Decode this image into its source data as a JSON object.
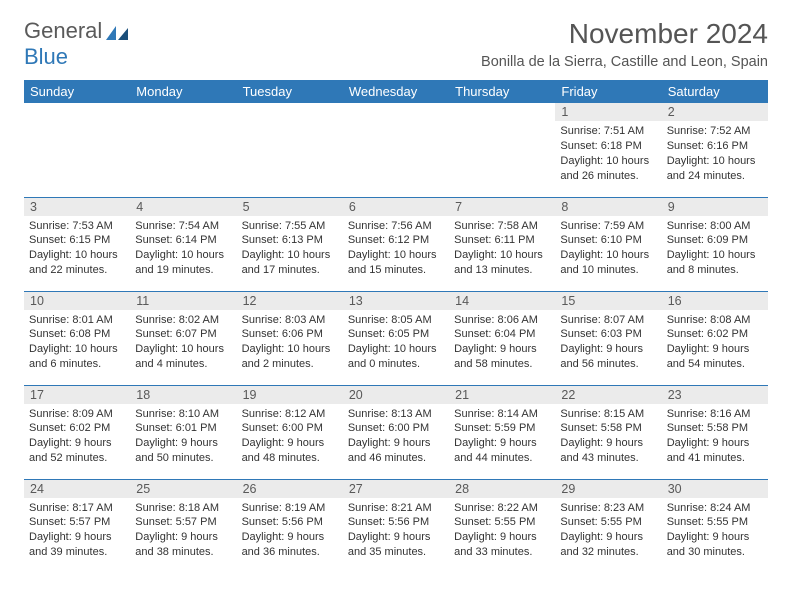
{
  "logo": {
    "text1": "General",
    "text2": "Blue"
  },
  "header": {
    "title": "November 2024",
    "subtitle": "Bonilla de la Sierra, Castille and Leon, Spain"
  },
  "colors": {
    "brand": "#2f78b7",
    "header_bg": "#2f78b7",
    "header_fg": "#ffffff",
    "daynum_bg": "#ebebeb",
    "daynum_fg": "#595959",
    "text": "#333333",
    "title_fg": "#555555"
  },
  "calendar": {
    "day_labels": [
      "Sunday",
      "Monday",
      "Tuesday",
      "Wednesday",
      "Thursday",
      "Friday",
      "Saturday"
    ],
    "weeks": [
      [
        null,
        null,
        null,
        null,
        null,
        {
          "n": "1",
          "sunrise": "7:51 AM",
          "sunset": "6:18 PM",
          "dl1": "Daylight: 10 hours",
          "dl2": "and 26 minutes."
        },
        {
          "n": "2",
          "sunrise": "7:52 AM",
          "sunset": "6:16 PM",
          "dl1": "Daylight: 10 hours",
          "dl2": "and 24 minutes."
        }
      ],
      [
        {
          "n": "3",
          "sunrise": "7:53 AM",
          "sunset": "6:15 PM",
          "dl1": "Daylight: 10 hours",
          "dl2": "and 22 minutes."
        },
        {
          "n": "4",
          "sunrise": "7:54 AM",
          "sunset": "6:14 PM",
          "dl1": "Daylight: 10 hours",
          "dl2": "and 19 minutes."
        },
        {
          "n": "5",
          "sunrise": "7:55 AM",
          "sunset": "6:13 PM",
          "dl1": "Daylight: 10 hours",
          "dl2": "and 17 minutes."
        },
        {
          "n": "6",
          "sunrise": "7:56 AM",
          "sunset": "6:12 PM",
          "dl1": "Daylight: 10 hours",
          "dl2": "and 15 minutes."
        },
        {
          "n": "7",
          "sunrise": "7:58 AM",
          "sunset": "6:11 PM",
          "dl1": "Daylight: 10 hours",
          "dl2": "and 13 minutes."
        },
        {
          "n": "8",
          "sunrise": "7:59 AM",
          "sunset": "6:10 PM",
          "dl1": "Daylight: 10 hours",
          "dl2": "and 10 minutes."
        },
        {
          "n": "9",
          "sunrise": "8:00 AM",
          "sunset": "6:09 PM",
          "dl1": "Daylight: 10 hours",
          "dl2": "and 8 minutes."
        }
      ],
      [
        {
          "n": "10",
          "sunrise": "8:01 AM",
          "sunset": "6:08 PM",
          "dl1": "Daylight: 10 hours",
          "dl2": "and 6 minutes."
        },
        {
          "n": "11",
          "sunrise": "8:02 AM",
          "sunset": "6:07 PM",
          "dl1": "Daylight: 10 hours",
          "dl2": "and 4 minutes."
        },
        {
          "n": "12",
          "sunrise": "8:03 AM",
          "sunset": "6:06 PM",
          "dl1": "Daylight: 10 hours",
          "dl2": "and 2 minutes."
        },
        {
          "n": "13",
          "sunrise": "8:05 AM",
          "sunset": "6:05 PM",
          "dl1": "Daylight: 10 hours",
          "dl2": "and 0 minutes."
        },
        {
          "n": "14",
          "sunrise": "8:06 AM",
          "sunset": "6:04 PM",
          "dl1": "Daylight: 9 hours",
          "dl2": "and 58 minutes."
        },
        {
          "n": "15",
          "sunrise": "8:07 AM",
          "sunset": "6:03 PM",
          "dl1": "Daylight: 9 hours",
          "dl2": "and 56 minutes."
        },
        {
          "n": "16",
          "sunrise": "8:08 AM",
          "sunset": "6:02 PM",
          "dl1": "Daylight: 9 hours",
          "dl2": "and 54 minutes."
        }
      ],
      [
        {
          "n": "17",
          "sunrise": "8:09 AM",
          "sunset": "6:02 PM",
          "dl1": "Daylight: 9 hours",
          "dl2": "and 52 minutes."
        },
        {
          "n": "18",
          "sunrise": "8:10 AM",
          "sunset": "6:01 PM",
          "dl1": "Daylight: 9 hours",
          "dl2": "and 50 minutes."
        },
        {
          "n": "19",
          "sunrise": "8:12 AM",
          "sunset": "6:00 PM",
          "dl1": "Daylight: 9 hours",
          "dl2": "and 48 minutes."
        },
        {
          "n": "20",
          "sunrise": "8:13 AM",
          "sunset": "6:00 PM",
          "dl1": "Daylight: 9 hours",
          "dl2": "and 46 minutes."
        },
        {
          "n": "21",
          "sunrise": "8:14 AM",
          "sunset": "5:59 PM",
          "dl1": "Daylight: 9 hours",
          "dl2": "and 44 minutes."
        },
        {
          "n": "22",
          "sunrise": "8:15 AM",
          "sunset": "5:58 PM",
          "dl1": "Daylight: 9 hours",
          "dl2": "and 43 minutes."
        },
        {
          "n": "23",
          "sunrise": "8:16 AM",
          "sunset": "5:58 PM",
          "dl1": "Daylight: 9 hours",
          "dl2": "and 41 minutes."
        }
      ],
      [
        {
          "n": "24",
          "sunrise": "8:17 AM",
          "sunset": "5:57 PM",
          "dl1": "Daylight: 9 hours",
          "dl2": "and 39 minutes."
        },
        {
          "n": "25",
          "sunrise": "8:18 AM",
          "sunset": "5:57 PM",
          "dl1": "Daylight: 9 hours",
          "dl2": "and 38 minutes."
        },
        {
          "n": "26",
          "sunrise": "8:19 AM",
          "sunset": "5:56 PM",
          "dl1": "Daylight: 9 hours",
          "dl2": "and 36 minutes."
        },
        {
          "n": "27",
          "sunrise": "8:21 AM",
          "sunset": "5:56 PM",
          "dl1": "Daylight: 9 hours",
          "dl2": "and 35 minutes."
        },
        {
          "n": "28",
          "sunrise": "8:22 AM",
          "sunset": "5:55 PM",
          "dl1": "Daylight: 9 hours",
          "dl2": "and 33 minutes."
        },
        {
          "n": "29",
          "sunrise": "8:23 AM",
          "sunset": "5:55 PM",
          "dl1": "Daylight: 9 hours",
          "dl2": "and 32 minutes."
        },
        {
          "n": "30",
          "sunrise": "8:24 AM",
          "sunset": "5:55 PM",
          "dl1": "Daylight: 9 hours",
          "dl2": "and 30 minutes."
        }
      ]
    ]
  },
  "labels": {
    "sunrise_prefix": "Sunrise: ",
    "sunset_prefix": "Sunset: "
  }
}
